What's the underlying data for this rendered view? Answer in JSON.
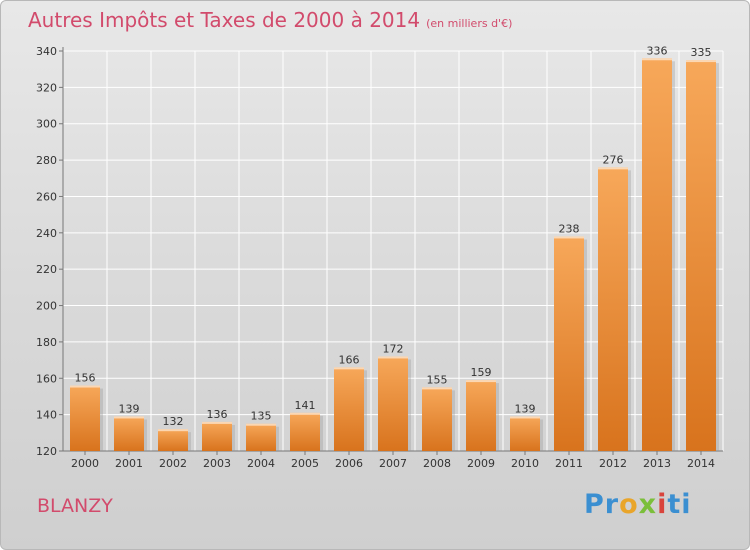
{
  "title": "Autres Impôts et Taxes de 2000 à 2014",
  "subtitle": "(en milliers d'€)",
  "city": "BLANZY",
  "logo": {
    "parts": [
      "Pr",
      "o",
      "x",
      "i",
      "ti"
    ]
  },
  "colors": {
    "bar_light": "#f7a75a",
    "bar_dark": "#d9741e",
    "title": "#d24b6c",
    "grid": "#ffffff"
  },
  "chart_data": {
    "type": "bar",
    "title": "Autres Impôts et Taxes de 2000 à 2014",
    "categories": [
      "2000",
      "2001",
      "2002",
      "2003",
      "2004",
      "2005",
      "2006",
      "2007",
      "2008",
      "2009",
      "2010",
      "2011",
      "2012",
      "2013",
      "2014"
    ],
    "values": [
      156,
      139,
      132,
      136,
      135,
      141,
      166,
      172,
      155,
      159,
      139,
      238,
      276,
      336,
      335
    ],
    "ylim": [
      120,
      340
    ],
    "yticks": [
      120,
      140,
      160,
      180,
      200,
      220,
      240,
      260,
      280,
      300,
      320,
      340
    ],
    "grid": true,
    "xlabel": "",
    "ylabel": ""
  }
}
